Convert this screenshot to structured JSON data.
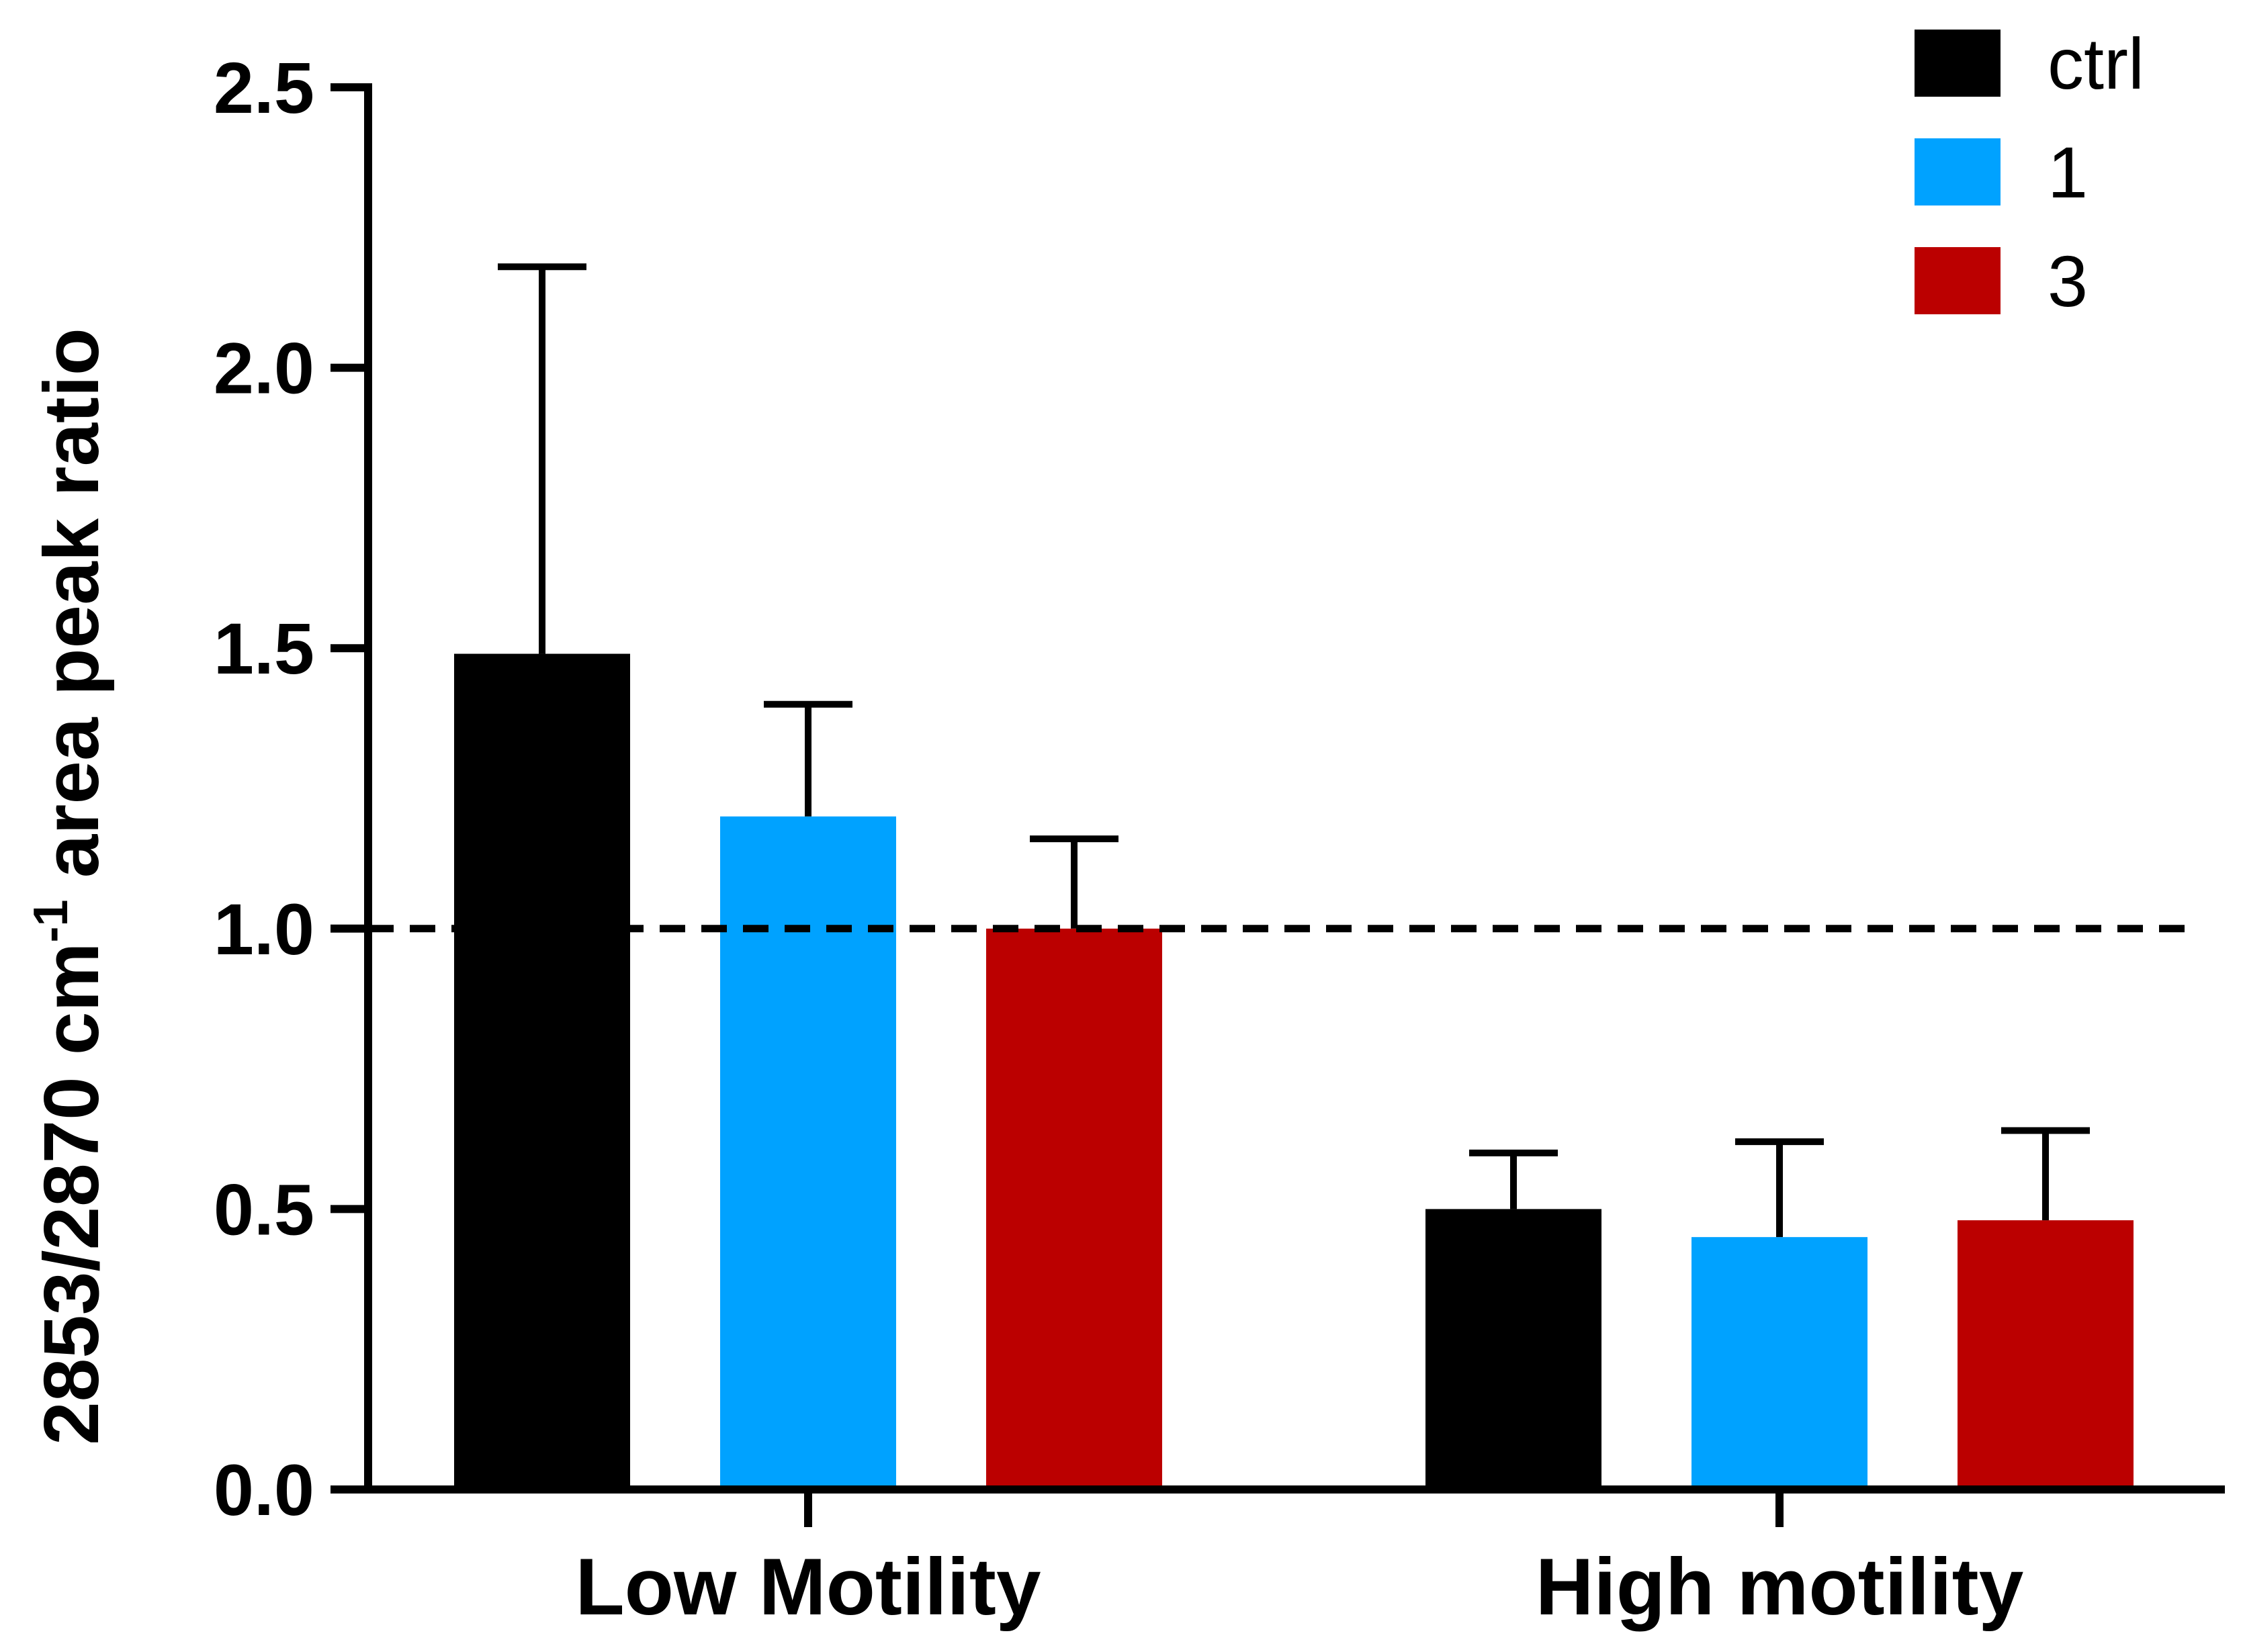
{
  "chart_data": {
    "type": "bar",
    "title": "",
    "xlabel": "",
    "ylabel": {
      "main": "2853/2870 cm",
      "superscript": "-1",
      "suffix": " area peak ratio"
    },
    "ylim": [
      0,
      2.5
    ],
    "yticks": [
      0.0,
      0.5,
      1.0,
      1.5,
      2.0,
      2.5
    ],
    "ytick_labels": [
      "0.0",
      "0.5",
      "1.0",
      "1.5",
      "2.0",
      "2.5"
    ],
    "categories": [
      "Low Motility",
      "High motility"
    ],
    "series": [
      {
        "name": "ctrl",
        "color": "#000000",
        "values": [
          1.49,
          0.5
        ],
        "error": [
          0.69,
          0.1
        ]
      },
      {
        "name": "1",
        "color": "#00a2ff",
        "values": [
          1.2,
          0.45
        ],
        "error": [
          0.2,
          0.17
        ]
      },
      {
        "name": "3",
        "color": "#bb0000",
        "values": [
          1.0,
          0.48
        ],
        "error": [
          0.16,
          0.16
        ]
      }
    ],
    "reference_line": {
      "value": 1.0,
      "style": "dashed"
    },
    "legend": {
      "position": "top-right"
    },
    "grid": false
  }
}
